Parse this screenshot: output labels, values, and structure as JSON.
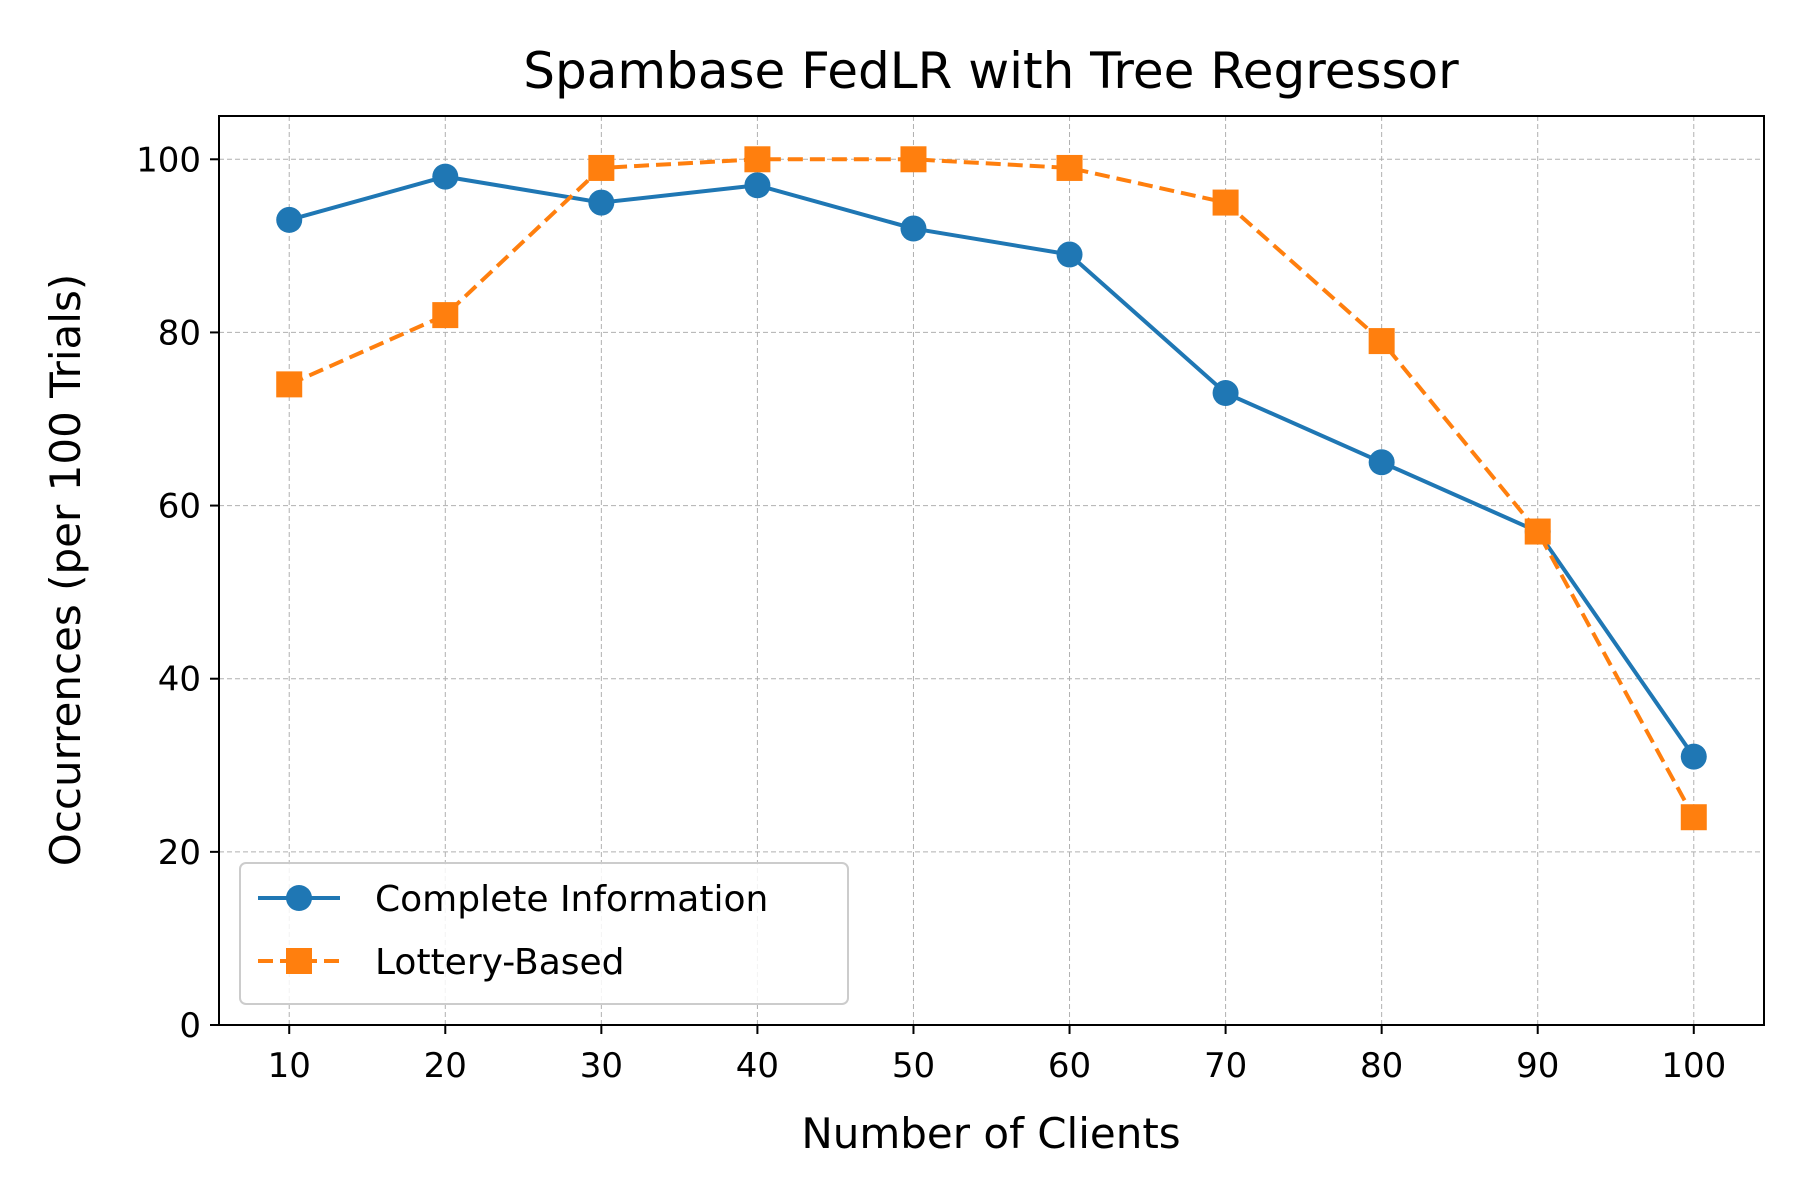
{
  "chart_data": {
    "type": "line",
    "title": "Spambase FedLR with Tree Regressor",
    "xlabel": "Number of Clients",
    "ylabel": "Occurrences (per 100 Trials)",
    "x": [
      10,
      20,
      30,
      40,
      50,
      60,
      70,
      80,
      90,
      100
    ],
    "xticks": [
      "10",
      "20",
      "30",
      "40",
      "50",
      "60",
      "70",
      "80",
      "90",
      "100"
    ],
    "yticks": [
      "0",
      "20",
      "40",
      "60",
      "80",
      "100"
    ],
    "xlim": [
      5.5,
      104.5
    ],
    "ylim": [
      0,
      105
    ],
    "grid": true,
    "legend_position": "lower-left",
    "series": [
      {
        "name": "Complete Information",
        "values": [
          93,
          98,
          95,
          97,
          92,
          89,
          73,
          65,
          57,
          31
        ],
        "color": "#1f77b4",
        "marker": "circle",
        "line_style": "solid"
      },
      {
        "name": "Lottery-Based",
        "values": [
          74,
          82,
          99,
          100,
          100,
          99,
          95,
          79,
          57,
          24
        ],
        "color": "#ff7f0e",
        "marker": "square",
        "line_style": "dashed"
      }
    ]
  }
}
